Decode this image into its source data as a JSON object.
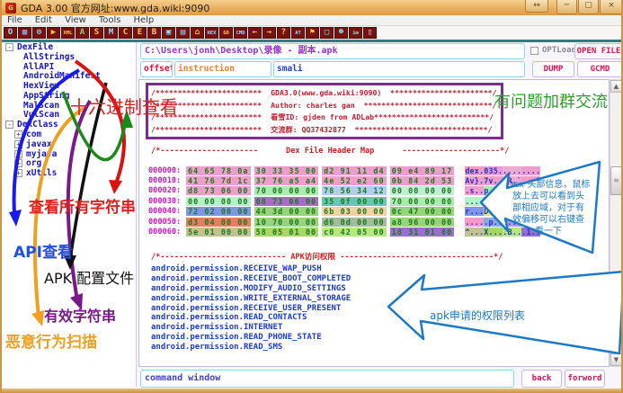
{
  "window": {
    "title": "GDA 3.00 官方网址:www.gda.wiki:9090",
    "icon_text": "G",
    "controls": {
      "restore": "↔",
      "minimize": "─",
      "maximize": "▢",
      "close": "×"
    }
  },
  "menu": {
    "items": [
      "File",
      "Edit",
      "View",
      "Tools",
      "Help"
    ]
  },
  "toolbar": {
    "icons": [
      {
        "name": "open-icon",
        "glyph": "O",
        "color": "#7fe8ff"
      },
      {
        "name": "save-icon",
        "glyph": "▦",
        "color": "#8fb4ff"
      },
      {
        "name": "search-icon",
        "glyph": "⊙",
        "color": "#7fe8ff"
      },
      {
        "name": "run-icon",
        "glyph": "▶",
        "color": "#ffd24a"
      },
      {
        "name": "xml-icon",
        "glyph": "XML",
        "color": "#ffd24a"
      },
      {
        "name": "apk-icon",
        "glyph": "A",
        "color": "#7dd87d"
      },
      {
        "name": "strings-icon",
        "glyph": "S",
        "color": "#ffd24a"
      },
      {
        "name": "method-icon",
        "glyph": "M",
        "color": "#7fe8ff"
      },
      {
        "name": "class-icon",
        "glyph": "C",
        "color": "#ffd24a"
      },
      {
        "name": "field-icon",
        "glyph": "E",
        "color": "#ffd24a"
      },
      {
        "name": "bytecode-icon",
        "glyph": "B",
        "color": "#ffd24a"
      },
      {
        "name": "window-icon",
        "glyph": "▣",
        "color": "#7fe8ff"
      },
      {
        "name": "device-icon",
        "glyph": "▤",
        "color": "#7fe8ff"
      },
      {
        "name": "tree-icon",
        "glyph": "⌂",
        "color": "#ffd24a"
      },
      {
        "name": "hex-icon",
        "glyph": "HEX",
        "color": "#7fe8ff"
      },
      {
        "name": "go-icon",
        "glyph": "GO",
        "color": "#ffd24a"
      },
      {
        "name": "cmd-icon",
        "glyph": "CMD",
        "color": "#7fe8ff"
      },
      {
        "name": "back-arrow-icon",
        "glyph": "←",
        "color": "#ffd24a"
      },
      {
        "name": "forward-arrow-icon",
        "glyph": "→",
        "color": "#ffd24a"
      },
      {
        "name": "help-icon",
        "glyph": "?",
        "color": "#ffd24a"
      },
      {
        "name": "at-icon",
        "glyph": "AT",
        "color": "#7fe8ff"
      },
      {
        "name": "flag-icon",
        "glyph": "⚑",
        "color": "#ffd24a"
      },
      {
        "name": "monitor-icon",
        "glyph": "▢",
        "color": "#7fe8ff"
      },
      {
        "name": "group-icon",
        "glyph": "☻",
        "color": "#7fe8ff"
      },
      {
        "name": "ime-icon",
        "glyph": "im",
        "color": "#7fe8ff"
      },
      {
        "name": "doc-icon",
        "glyph": "▯",
        "color": "#cfe8ff"
      }
    ]
  },
  "sidebar": {
    "tree": [
      {
        "label": "DexFile",
        "level": 0,
        "box": "-"
      },
      {
        "label": "AllStrings",
        "level": 1,
        "box": ""
      },
      {
        "label": "AllAPI",
        "level": 1,
        "box": ""
      },
      {
        "label": "AndroidManifest",
        "level": 1,
        "box": ""
      },
      {
        "label": "HexView",
        "level": 1,
        "box": ""
      },
      {
        "label": "AppString",
        "level": 1,
        "box": ""
      },
      {
        "label": "MalScan",
        "level": 1,
        "box": ""
      },
      {
        "label": "VulScan",
        "level": 1,
        "box": ""
      },
      {
        "label": "DexClass",
        "level": 0,
        "box": "-"
      },
      {
        "label": "com",
        "level": 1,
        "box": "+"
      },
      {
        "label": "javax",
        "level": 1,
        "box": "+"
      },
      {
        "label": "myjava",
        "level": 1,
        "box": "+"
      },
      {
        "label": "org",
        "level": 1,
        "box": "+"
      },
      {
        "label": "xUtils",
        "level": 1,
        "box": "+"
      }
    ]
  },
  "fileinfo": {
    "path": "C:\\Users\\jonh\\Desktop\\录像 - 副本.apk",
    "offset_label": "offset",
    "instruction_label": "instruction",
    "smali_label": "smali",
    "optload_label": "OPTLoad",
    "open_button": "OPEN FILE",
    "dump_button": "DUMP",
    "gcmd_button": "GCMD"
  },
  "editor": {
    "comment_lines": [
      "/************************  GDA3.0(www.gda.wiki:9090)  ***********************/",
      "/************************  Author: charles gan  *****************************/",
      "/************************  看雪ID: gjden from ADLab**************************/",
      "/************************  交流群: QQ37432877  ******************************/"
    ],
    "dex_map_header": "/*---------------------      Dex File Header Map      ---------------------*/",
    "hex_rows": [
      {
        "offset": "000000:",
        "groups": [
          {
            "b": "64 65 78 0a",
            "c": "#f09cce"
          },
          {
            "b": "30 33 35 00",
            "c": "#f09cce"
          },
          {
            "b": "d2 91 11 d4",
            "c": "#f09cce"
          },
          {
            "b": "09 e4 89 17",
            "c": "#f09cce"
          }
        ],
        "ascii": [
          {
            "t": "dex.",
            "c": "#f09cce"
          },
          {
            "t": "035.",
            "c": "#f09cce"
          },
          {
            "t": "....",
            "c": "#f0a8d4"
          },
          {
            "t": "....",
            "c": "#f09cce"
          }
        ]
      },
      {
        "offset": "000010:",
        "groups": [
          {
            "b": "41 76 7d 1c",
            "c": "#f09cce"
          },
          {
            "b": "37 76 a5 a4",
            "c": "#f09cce"
          },
          {
            "b": "4e 52 e2 60",
            "c": "#f09cce"
          },
          {
            "b": "0b 84 2d 53",
            "c": "#f09cce"
          }
        ],
        "ascii": [
          {
            "t": "Av}.",
            "c": "#f09cce"
          },
          {
            "t": "7v..",
            "c": "#f09cce"
          },
          {
            "t": "NR.`",
            "c": "#f0a8d4"
          },
          {
            "t": "..-S",
            "c": "#f09cce"
          }
        ]
      },
      {
        "offset": "000020:",
        "groups": [
          {
            "b": "d8 73 06 00",
            "c": "#f09cce"
          },
          {
            "b": "70 00 00 00",
            "c": "#aceab2"
          },
          {
            "b": "78 56 34 12",
            "c": "#b2ccf2"
          },
          {
            "b": "00 00 00 00",
            "c": "#c2ecd6"
          }
        ],
        "ascii": [
          {
            "t": ".s..",
            "c": "#f09cce"
          },
          {
            "t": "p...",
            "c": "#aceab2"
          },
          {
            "t": "xV4.",
            "c": "#b2ccf2"
          },
          {
            "t": "....",
            "c": "#c2ecd6"
          }
        ]
      },
      {
        "offset": "000030:",
        "groups": [
          {
            "b": "00 00 00 00",
            "c": "#b4f2c8"
          },
          {
            "b": "08 73 06 00",
            "c": "#a86cc8"
          },
          {
            "b": "35 0f 00 00",
            "c": "#66c8b0"
          },
          {
            "b": "70 00 00 00",
            "c": "#aceab2"
          }
        ],
        "ascii": [
          {
            "t": "....",
            "c": "#b4f2c8"
          },
          {
            "t": ".s..",
            "c": "#a86cc8"
          },
          {
            "t": "5...",
            "c": "#66c8b0"
          },
          {
            "t": "p...",
            "c": "#aceab2"
          }
        ]
      },
      {
        "offset": "000040:",
        "groups": [
          {
            "b": "72 02 00 00",
            "c": "#7e96e8"
          },
          {
            "b": "44 3d 00 00",
            "c": "#98d47c"
          },
          {
            "b": "6b 03 00 00",
            "c": "#f2d2a2"
          },
          {
            "b": "0c 47 00 00",
            "c": "#98d47c"
          }
        ],
        "ascii": [
          {
            "t": "r...",
            "c": "#7e96e8"
          },
          {
            "t": "D=..",
            "c": "#e8e070"
          },
          {
            "t": "k...",
            "c": "#98d47c"
          },
          {
            "t": ".G..",
            "c": "#b6e87e"
          }
        ]
      },
      {
        "offset": "000050:",
        "groups": [
          {
            "b": "d3 04 00 00",
            "c": "#e87a66"
          },
          {
            "b": "10 70 00 00",
            "c": "#98d47c"
          },
          {
            "b": "d6 0d 00 00",
            "c": "#a4bc9c"
          },
          {
            "b": "a8 96 00 00",
            "c": "#98d47c"
          }
        ],
        "ascii": [
          {
            "t": "....",
            "c": "#f09cce"
          },
          {
            "t": ".p..",
            "c": "#8fa8e8"
          },
          {
            "t": "....",
            "c": "#b49ae0"
          },
          {
            "t": "....",
            "c": "#c2ecd6"
          }
        ]
      },
      {
        "offset": "000060:",
        "groups": [
          {
            "b": "5e 01 00 00",
            "c": "#c2c290"
          },
          {
            "b": "58 05 01 00",
            "c": "#a8d860"
          },
          {
            "b": "c0 42 05 00",
            "c": "#b6e87e"
          },
          {
            "b": "18 31 01 00",
            "c": "#9a6ed0"
          }
        ],
        "ascii": [
          {
            "t": "^...",
            "c": "#c2c290"
          },
          {
            "t": "X...",
            "c": "#a8d860"
          },
          {
            "t": ".B..",
            "c": "#b6e87e"
          },
          {
            "t": ".1..",
            "c": "#9a6ed0"
          }
        ]
      }
    ],
    "perm_header": "/*--------------------------- APK访问权限 ---------------------------------*/",
    "permissions": [
      "android.permission.RECEIVE_WAP_PUSH",
      "android.permission.RECEIVE_BOOT_COMPLETED",
      "android.permission.MODIFY_AUDIO_SETTINGS",
      "android.permission.WRITE_EXTERNAL_STORAGE",
      "android.permission.RECEIVE_USER_PRESENT",
      "android.permission.READ_CONTACTS",
      "android.permission.INTERNET",
      "android.permission.READ_PHONE_STATE",
      "android.permission.READ_SMS"
    ]
  },
  "annotations": {
    "hex_view": "十六进制查看",
    "all_strings": "查看所有字符串",
    "api": "API查看",
    "manifest": "APK 配置文件",
    "app_string": "有效字符串",
    "malscan": "恶意行为扫描",
    "qq_group": "有问题加群交流",
    "callout_header_lines": [
      "Dex 头部信息，鼠标",
      "放上去可以看到头",
      "部相应域，对于有",
      "效偏移可以右键查",
      "看一下"
    ],
    "callout_perm": "apk申请的权限列表"
  },
  "statusbar": {
    "command_value": "command window",
    "back_button": "back",
    "forward_button": "forword"
  },
  "colors": {
    "accent_purple": "#7b2d8b",
    "callout_blue": "#1b79c8",
    "comment_red": "#c22030",
    "perm_blue": "#1a3ad0",
    "hex_green": "#1a7a1a",
    "offset_magenta": "#d018c8",
    "titlebar_orange": "#e8ae5c"
  }
}
